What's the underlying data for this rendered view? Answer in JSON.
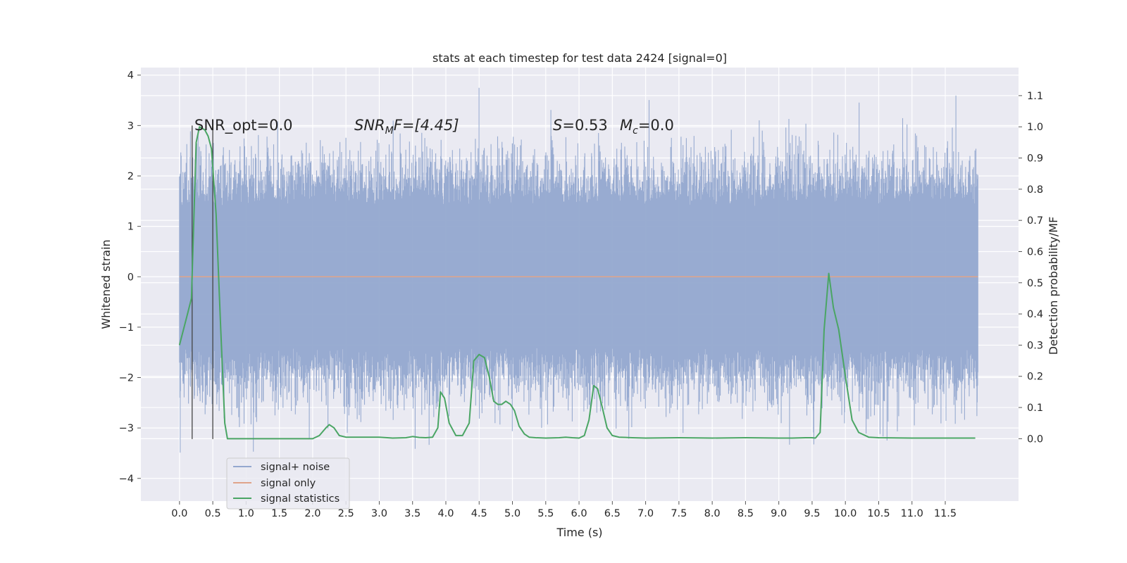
{
  "chart_data": {
    "type": "line",
    "title": "stats at each timestep for test data 2424 [signal=0]",
    "xlabel": "Time (s)",
    "ylabel_left": "Whitened strain",
    "ylabel_right": "Detection probability/MF",
    "xlim": [
      -0.58,
      12.6
    ],
    "ylim_left": [
      -4.45,
      4.15
    ],
    "ylim_right": [
      -0.2,
      1.19
    ],
    "x_ticks": [
      "0.0",
      "0.5",
      "1.0",
      "1.5",
      "2.0",
      "2.5",
      "3.0",
      "3.5",
      "4.0",
      "4.5",
      "5.0",
      "5.5",
      "6.0",
      "6.5",
      "7.0",
      "7.5",
      "8.0",
      "8.5",
      "9.0",
      "9.5",
      "10.0",
      "10.5",
      "11.0",
      "11.5"
    ],
    "y_left_ticks": [
      "−4",
      "−3",
      "−2",
      "−1",
      "0",
      "1",
      "2",
      "3",
      "4"
    ],
    "y_right_ticks": [
      "0.0",
      "0.1",
      "0.2",
      "0.3",
      "0.4",
      "0.5",
      "0.6",
      "0.7",
      "0.8",
      "0.9",
      "1.0",
      "1.1"
    ],
    "grid": true,
    "legend_position": "lower-left",
    "annotations": {
      "snr_opt": "SNR_opt=0.0",
      "snr_mf_a": "SNR",
      "snr_mf_sub": "M",
      "snr_mf_b": "F=[4.45]",
      "s_a": "S",
      "s_b": "=0.53",
      "mc_a": "M",
      "mc_sub": "c",
      "mc_b": "=0.0"
    },
    "vertical_lines_x": [
      0.19,
      0.5
    ],
    "series": [
      {
        "name": "signal+ noise",
        "color": "#94a8cf",
        "envelope_hint": "dense noise spanning roughly -2.5 to 2.5 with spikes to about ±4"
      },
      {
        "name": "signal only",
        "color": "#e0a48a",
        "x": [
          0.0,
          11.99
        ],
        "y": [
          0.0,
          0.0
        ]
      },
      {
        "name": "signal statistics",
        "color": "#4aa564",
        "axis": "right",
        "x": [
          0.0,
          0.12,
          0.18,
          0.25,
          0.3,
          0.38,
          0.43,
          0.48,
          0.55,
          0.62,
          0.68,
          0.72,
          0.8,
          1.0,
          1.5,
          2.0,
          2.1,
          2.2,
          2.25,
          2.32,
          2.4,
          2.5,
          2.6,
          2.8,
          3.0,
          3.2,
          3.4,
          3.5,
          3.6,
          3.7,
          3.8,
          3.88,
          3.92,
          3.98,
          4.05,
          4.15,
          4.25,
          4.35,
          4.42,
          4.5,
          4.58,
          4.65,
          4.72,
          4.78,
          4.84,
          4.9,
          4.97,
          5.03,
          5.1,
          5.18,
          5.25,
          5.35,
          5.5,
          5.7,
          5.8,
          5.9,
          6.0,
          6.08,
          6.15,
          6.22,
          6.28,
          6.35,
          6.42,
          6.5,
          6.6,
          6.8,
          7.0,
          7.5,
          8.0,
          8.5,
          9.0,
          9.2,
          9.4,
          9.5,
          9.55,
          9.62,
          9.68,
          9.75,
          9.82,
          9.9,
          10.0,
          10.1,
          10.2,
          10.35,
          10.5,
          11.0,
          11.5,
          11.95
        ],
        "y": [
          0.3,
          0.4,
          0.45,
          0.95,
          1.0,
          0.99,
          0.97,
          0.93,
          0.72,
          0.35,
          0.05,
          0.0,
          0.0,
          0.0,
          0.0,
          0.0,
          0.01,
          0.035,
          0.045,
          0.035,
          0.01,
          0.005,
          0.005,
          0.005,
          0.005,
          0.002,
          0.003,
          0.007,
          0.004,
          0.003,
          0.005,
          0.035,
          0.15,
          0.13,
          0.05,
          0.01,
          0.01,
          0.05,
          0.25,
          0.27,
          0.26,
          0.2,
          0.12,
          0.11,
          0.11,
          0.12,
          0.11,
          0.09,
          0.04,
          0.015,
          0.005,
          0.003,
          0.002,
          0.003,
          0.005,
          0.003,
          0.002,
          0.01,
          0.06,
          0.17,
          0.16,
          0.1,
          0.035,
          0.01,
          0.005,
          0.003,
          0.002,
          0.003,
          0.002,
          0.003,
          0.002,
          0.002,
          0.003,
          0.003,
          0.002,
          0.02,
          0.35,
          0.53,
          0.42,
          0.35,
          0.2,
          0.06,
          0.02,
          0.005,
          0.003,
          0.002,
          0.002,
          0.002
        ]
      }
    ]
  }
}
